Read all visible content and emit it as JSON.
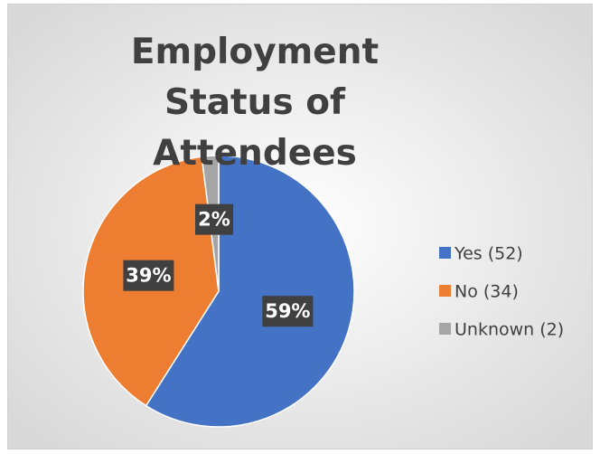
{
  "chart_data": {
    "type": "pie",
    "title": "Employment Status of Attendees",
    "categories": [
      "Yes (52)",
      "No (34)",
      "Unknown (2)"
    ],
    "values": [
      59,
      39,
      2
    ],
    "value_labels": [
      "59%",
      "39%",
      "2%"
    ],
    "colors": [
      "#4472c4",
      "#ed7d31",
      "#a5a5a5"
    ],
    "legend": "right"
  }
}
